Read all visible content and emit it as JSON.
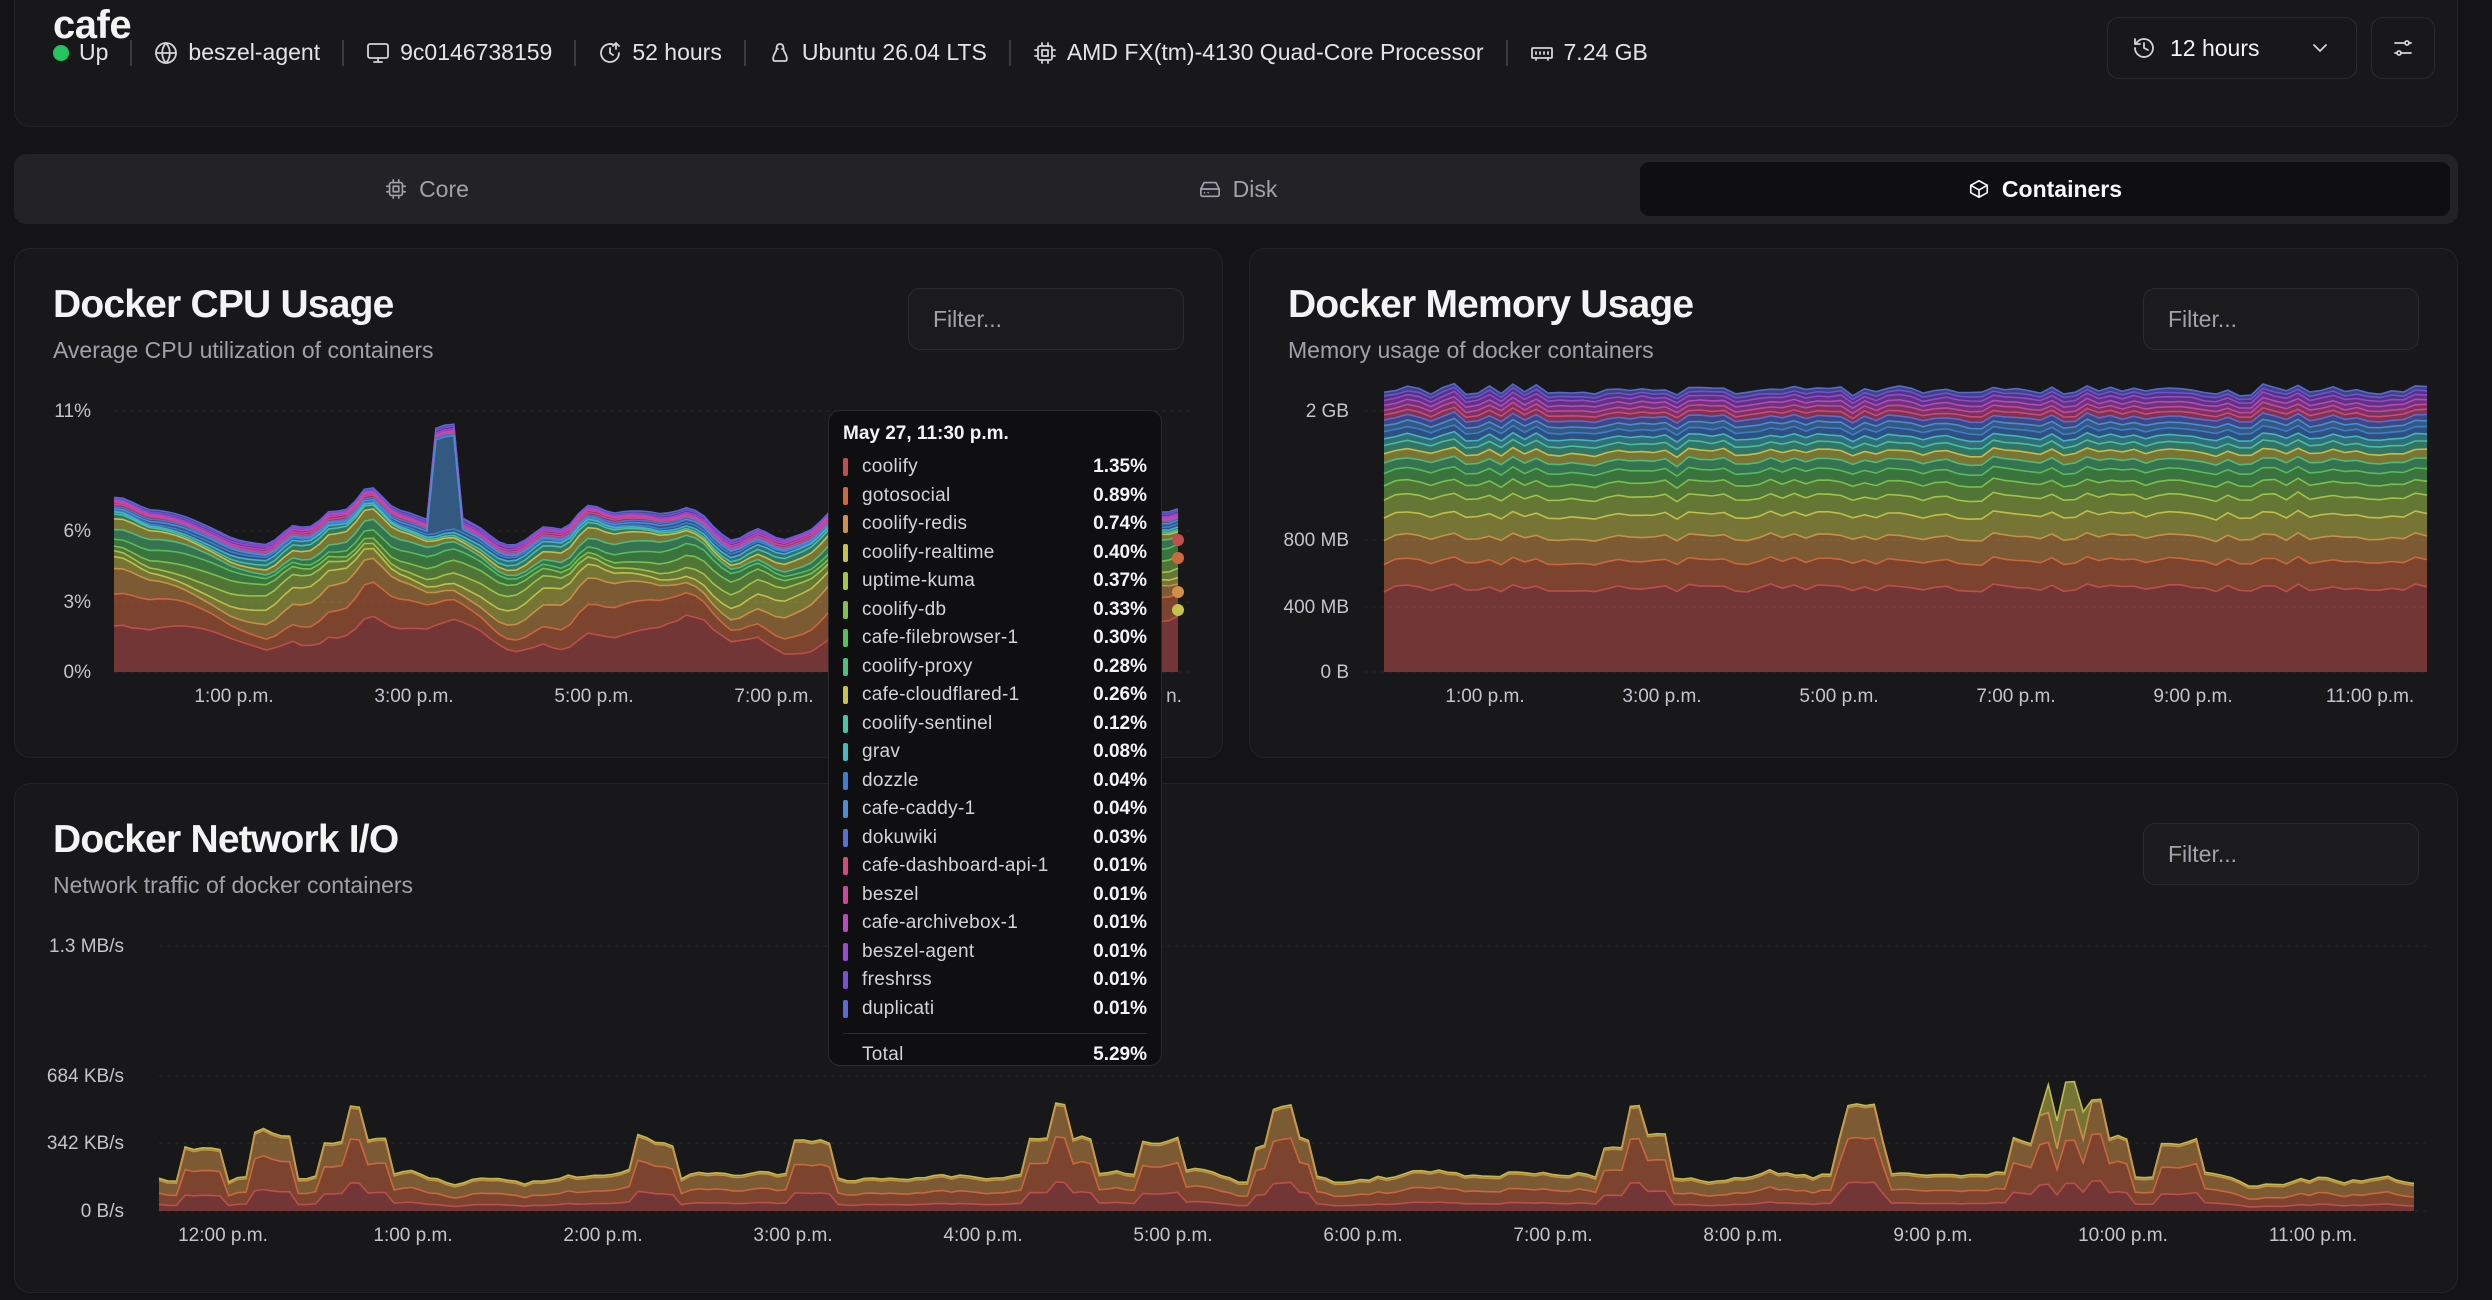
{
  "system": {
    "name": "cafe",
    "status": "Up",
    "agent": "beszel-agent",
    "host_id": "9c0146738159",
    "uptime": "52 hours",
    "os": "Ubuntu 26.04 LTS",
    "cpu": "AMD FX(tm)-4130 Quad-Core Processor",
    "memory": "7.24 GB"
  },
  "time_range": {
    "selected": "12 hours"
  },
  "tabs": [
    {
      "label": "Core",
      "icon": "cpu-icon",
      "active": false
    },
    {
      "label": "Disk",
      "icon": "disk-icon",
      "active": false
    },
    {
      "label": "Containers",
      "icon": "box-icon",
      "active": true
    }
  ],
  "charts": {
    "cpu": {
      "title": "Docker CPU Usage",
      "description": "Average CPU utilization of containers",
      "filter_placeholder": "Filter...",
      "y_ticks": [
        "11%",
        "6%",
        "3%",
        "0%"
      ],
      "x_ticks": [
        "1:00 p.m.",
        "3:00 p.m.",
        "5:00 p.m.",
        "7:00 p.m."
      ],
      "x_tail": "n."
    },
    "memory": {
      "title": "Docker Memory Usage",
      "description": "Memory usage of docker containers",
      "filter_placeholder": "Filter...",
      "y_ticks": [
        "2 GB",
        "800 MB",
        "400 MB",
        "0 B"
      ],
      "x_ticks": [
        "1:00 p.m.",
        "3:00 p.m.",
        "5:00 p.m.",
        "7:00 p.m.",
        "9:00 p.m.",
        "11:00 p.m."
      ]
    },
    "network": {
      "title": "Docker Network I/O",
      "description": "Network traffic of docker containers",
      "filter_placeholder": "Filter...",
      "y_ticks": [
        "1.3 MB/s",
        "684 KB/s",
        "342 KB/s",
        "0 B/s"
      ],
      "x_ticks": [
        "12:00 p.m.",
        "1:00 p.m.",
        "2:00 p.m.",
        "3:00 p.m.",
        "4:00 p.m.",
        "5:00 p.m.",
        "6:00 p.m.",
        "7:00 p.m.",
        "8:00 p.m.",
        "9:00 p.m.",
        "10:00 p.m.",
        "11:00 p.m."
      ]
    }
  },
  "tooltip": {
    "title": "May 27, 11:30 p.m.",
    "rows": [
      {
        "name": "coolify",
        "value": "1.35%",
        "color": "#c0504d"
      },
      {
        "name": "gotosocial",
        "value": "0.89%",
        "color": "#d0683e"
      },
      {
        "name": "coolify-redis",
        "value": "0.74%",
        "color": "#cf9148"
      },
      {
        "name": "coolify-realtime",
        "value": "0.40%",
        "color": "#c6c24c"
      },
      {
        "name": "uptime-kuma",
        "value": "0.37%",
        "color": "#a5c64a"
      },
      {
        "name": "coolify-db",
        "value": "0.33%",
        "color": "#7fc24f"
      },
      {
        "name": "cafe-filebrowser-1",
        "value": "0.30%",
        "color": "#58c05a"
      },
      {
        "name": "coolify-proxy",
        "value": "0.28%",
        "color": "#4fbf7d"
      },
      {
        "name": "cafe-cloudflared-1",
        "value": "0.26%",
        "color": "#c9c24a"
      },
      {
        "name": "coolify-sentinel",
        "value": "0.12%",
        "color": "#4bc2a0"
      },
      {
        "name": "grav",
        "value": "0.08%",
        "color": "#46b8c4"
      },
      {
        "name": "dozzle",
        "value": "0.04%",
        "color": "#3f7fd1"
      },
      {
        "name": "cafe-caddy-1",
        "value": "0.04%",
        "color": "#4a8fd6"
      },
      {
        "name": "dokuwiki",
        "value": "0.03%",
        "color": "#5b6fd8"
      },
      {
        "name": "cafe-dashboard-api-1",
        "value": "0.01%",
        "color": "#d44a7a"
      },
      {
        "name": "beszel",
        "value": "0.01%",
        "color": "#c94a9c"
      },
      {
        "name": "cafe-archivebox-1",
        "value": "0.01%",
        "color": "#b84ac4"
      },
      {
        "name": "beszel-agent",
        "value": "0.01%",
        "color": "#9a4ad0"
      },
      {
        "name": "freshrss",
        "value": "0.01%",
        "color": "#7a4fd4"
      },
      {
        "name": "duplicati",
        "value": "0.01%",
        "color": "#5a6bd8"
      }
    ],
    "total_label": "Total",
    "total_value": "5.29%"
  }
}
